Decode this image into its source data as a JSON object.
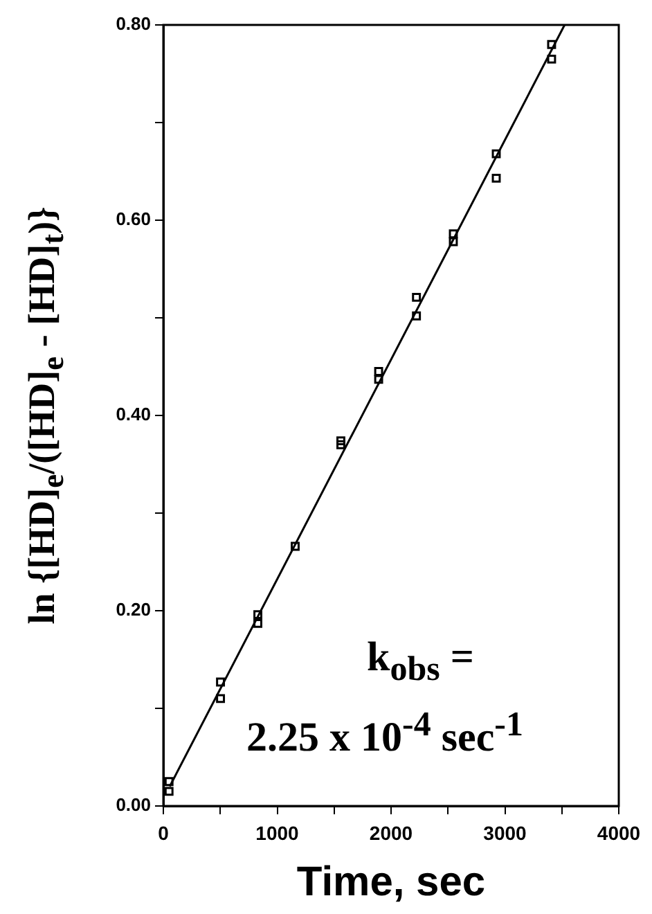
{
  "chart_data": {
    "type": "scatter",
    "xlabel": "Time, sec",
    "ylabel": "ln {[HD]$_{e}$/([HD]$_{e}$ - [HD]$_{t}$)}",
    "xlim": [
      0,
      4000
    ],
    "ylim": [
      0,
      0.8
    ],
    "xticks": [
      0,
      {
        "value": 500,
        "label": null
      },
      1000,
      {
        "value": 1500,
        "label": null
      },
      2000,
      {
        "value": 2500,
        "label": null
      },
      3000,
      {
        "value": 3500,
        "label": null
      },
      4000
    ],
    "yticks": [
      {
        "value": 0,
        "label": "0.00"
      },
      {
        "value": 0.1,
        "label": null
      },
      {
        "value": 0.2,
        "label": "0.20"
      },
      {
        "value": 0.3,
        "label": null
      },
      {
        "value": 0.4,
        "label": "0.40"
      },
      {
        "value": 0.5,
        "label": null
      },
      {
        "value": 0.6,
        "label": "0.60"
      },
      {
        "value": 0.7,
        "label": null
      },
      {
        "value": 0.8,
        "label": "0.80"
      }
    ],
    "grid": false,
    "legend": false,
    "marker": "square",
    "annotations": [
      "k$_{obs}$ =",
      "2.25 x 10$^{-4}$ sec$^{-1}$"
    ],
    "series": [
      {
        "color": "#000000",
        "x": [
          50,
          50,
          502,
          502,
          830,
          830,
          1158,
          1559,
          1559,
          1891,
          1891,
          2223,
          2223,
          2547,
          2547,
          2924,
          2924,
          3410,
          3410
        ],
        "values": [
          0.025,
          0.015,
          0.127,
          0.11,
          0.196,
          0.187,
          0.266,
          0.374,
          0.37,
          0.445,
          0.437,
          0.521,
          0.502,
          0.586,
          0.578,
          0.668,
          0.643,
          0.78,
          0.765
        ]
      },
      {
        "type": "line",
        "color": "#000000",
        "marker": "none",
        "line_style": "solid",
        "x": [
          56,
          3524
        ],
        "values": [
          0.02,
          0.8
        ]
      }
    ]
  }
}
